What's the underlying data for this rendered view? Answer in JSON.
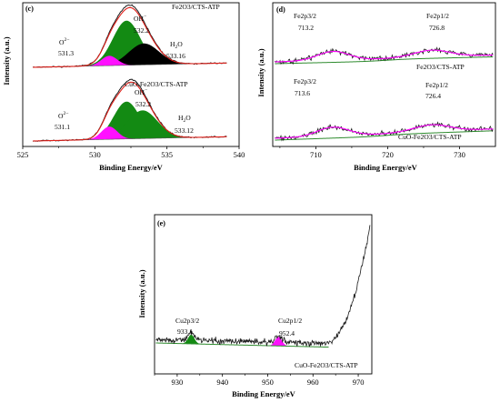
{
  "figure": {
    "ylabel": "Intensity (a.u.)",
    "xlabel": "Binding Energy/eV"
  },
  "colors": {
    "raw": "#1a1a1a",
    "envelope": "#e0201a",
    "green": "#138a13",
    "magenta": "#ff10ff",
    "black_peak": "#000000",
    "baseline_d": "#2e8b2e",
    "fit_d": "#ff00ff"
  },
  "chart_data": [
    {
      "type": "line",
      "panel": "(c)",
      "xlabel": "Binding Energy/eV",
      "ylabel": "Intensity (a.u.)",
      "xlim": [
        525,
        540
      ],
      "xticks": [
        525,
        530,
        535,
        540
      ],
      "series": [
        {
          "name": "Fe2O3/CTS-ATP",
          "components": [
            {
              "label": "O2-",
              "position_eV": 531.3,
              "color": "magenta"
            },
            {
              "label": "OH-",
              "position_eV": 532.2,
              "color": "green"
            },
            {
              "label": "H2O",
              "position_eV": 533.16,
              "color": "black"
            }
          ]
        },
        {
          "name": "CuO-Fe2O3/CTS-ATP",
          "components": [
            {
              "label": "O2-",
              "position_eV": 531.1,
              "color": "magenta"
            },
            {
              "label": "OH-",
              "position_eV": 532.2,
              "color": "green"
            },
            {
              "label": "H2O",
              "position_eV": 533.12,
              "color": "green"
            }
          ]
        }
      ],
      "text": {
        "label": "(c)",
        "s1": "Fe2O3/CTS-ATP",
        "s2": "CuO-Fe2O3/CTS-ATP",
        "t_o2": "O",
        "o2_sup": "2−",
        "v_o2a": "531.3",
        "v_o2b": "531.1",
        "t_oh": "OH",
        "oh_sup": "−",
        "v_oha": "532.2",
        "v_ohb": "532.2",
        "t_h2o_a": "H",
        "t_h2o_b": "O",
        "h2o_sub": "2",
        "v_h2oa": "533.16",
        "v_h2ob": "533.12",
        "ticks": [
          "525",
          "530",
          "535",
          "540"
        ]
      }
    },
    {
      "type": "line",
      "panel": "(d)",
      "xlabel": "Binding Energy/eV",
      "ylabel": "Intensity (a.u.)",
      "xlim": [
        704,
        735
      ],
      "xticks": [
        710,
        720,
        730
      ],
      "series": [
        {
          "name": "Fe2O3/CTS-ATP",
          "peaks": [
            {
              "label": "Fe2p3/2",
              "position_eV": 713.2
            },
            {
              "label": "Fe2p1/2",
              "position_eV": 726.8
            }
          ]
        },
        {
          "name": "CuO-Fe2O3/CTS-ATP",
          "peaks": [
            {
              "label": "Fe2p3/2",
              "position_eV": 713.6
            },
            {
              "label": "Fe2p1/2",
              "position_eV": 726.4
            }
          ]
        }
      ],
      "text": {
        "label": "(d)",
        "s1": "Fe2O3/CTS-ATP",
        "s2": "CuO-Fe2O3/CTS-ATP",
        "p32": "Fe2p3/2",
        "p12": "Fe2p1/2",
        "v1": "713.2",
        "v2": "726.8",
        "v3": "713.6",
        "v4": "726.4",
        "ticks": [
          "710",
          "720",
          "730"
        ]
      }
    },
    {
      "type": "line",
      "panel": "(e)",
      "xlabel": "Binding Energy/eV",
      "ylabel": "Intensity (a.u.)",
      "xlim": [
        925,
        973
      ],
      "xticks": [
        930,
        940,
        950,
        960,
        970
      ],
      "series": [
        {
          "name": "CuO-Fe2O3/CTS-ATP",
          "peaks": [
            {
              "label": "Cu2p3/2",
              "position_eV": 933.1,
              "color": "green"
            },
            {
              "label": "Cu2p1/2",
              "position_eV": 952.4,
              "color": "magenta"
            }
          ]
        }
      ],
      "text": {
        "label": "(e)",
        "s1": "CuO-Fe2O3/CTS-ATP",
        "p32": "Cu2p3/2",
        "p12": "Cu2p1/2",
        "v1": "933.1",
        "v2": "952.4",
        "ticks": [
          "930",
          "940",
          "950",
          "960",
          "970"
        ]
      }
    }
  ]
}
